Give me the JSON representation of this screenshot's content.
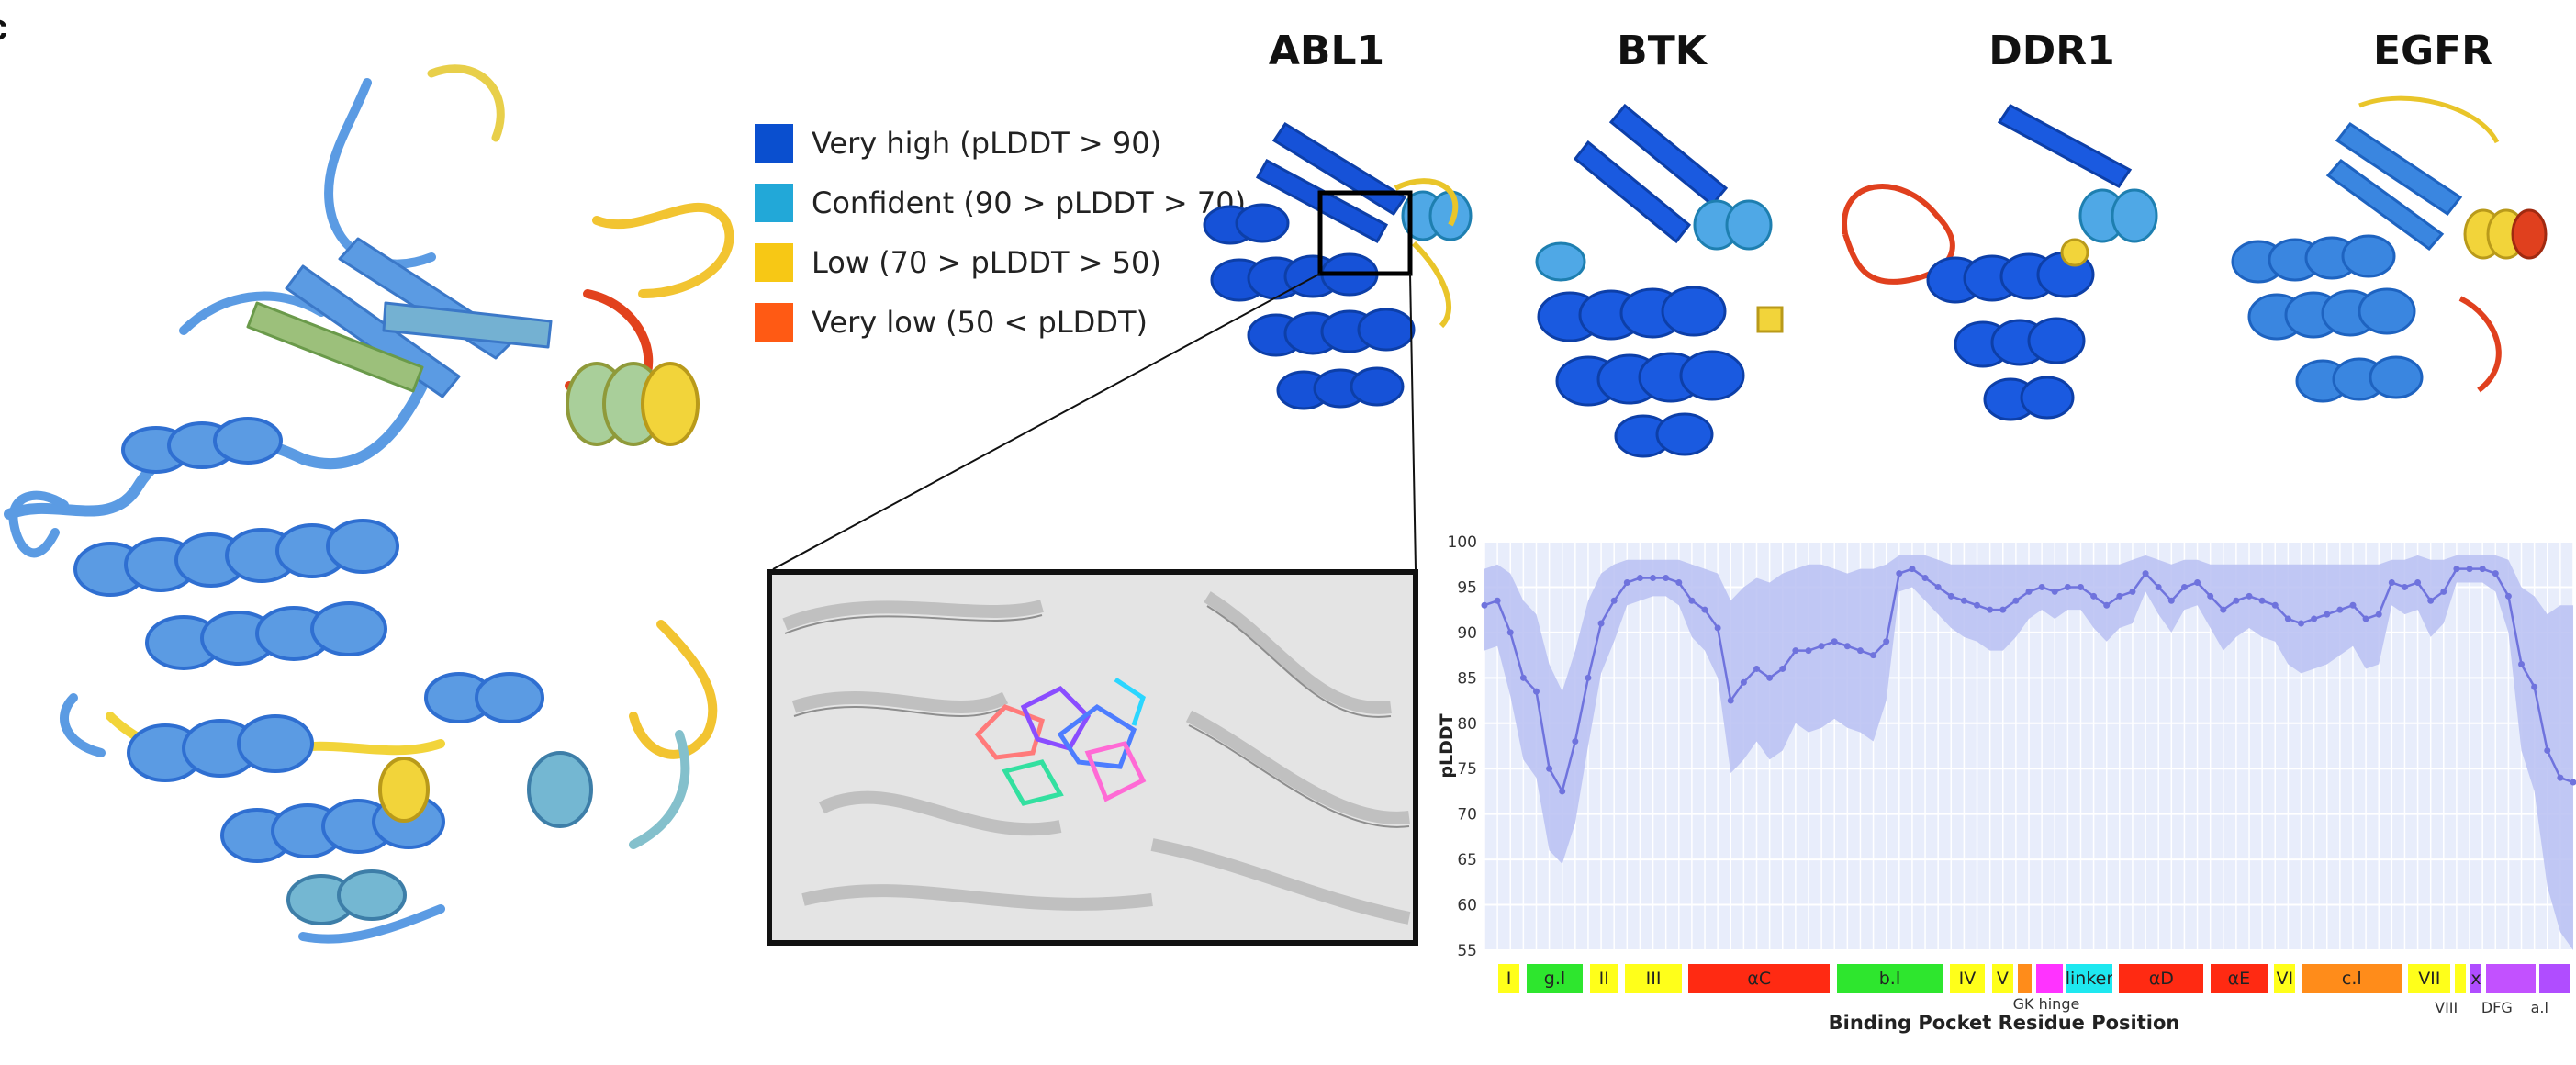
{
  "panel_letter": "c",
  "legend": [
    {
      "label": "Very high (pLDDT > 90)",
      "color": "#0a4fcf"
    },
    {
      "label": "Confident (90 > pLDDT > 70)",
      "color": "#22a8d8"
    },
    {
      "label": "Low (70 > pLDDT > 50)",
      "color": "#f7c815"
    },
    {
      "label": "Very low (50 < pLDDT)",
      "color": "#ff5a14"
    }
  ],
  "proteins": [
    "ABL1",
    "BTK",
    "DDR1",
    "EGFR"
  ],
  "colors": {
    "ribbon_mid": "#5b9be3",
    "ribbon_dark": "#2f6fd1",
    "ribbon_very_high": "#1652d8",
    "ribbon_confident": "#4fa8e6",
    "low": "#f2d43a",
    "very_low": "#e0401e",
    "line": "#6f73dd",
    "band": "#b9bff2",
    "plot_bg": "#e8edfb"
  },
  "chart_data": {
    "type": "line",
    "xlabel": "Binding Pocket Residue Position",
    "ylabel": "pLDDT",
    "ylim": [
      55,
      100
    ],
    "yticks": [
      55,
      60,
      65,
      70,
      75,
      80,
      85,
      90,
      95,
      100
    ],
    "grid": true,
    "series": [
      {
        "values": [
          93.0,
          93.5,
          90.0,
          85.0,
          83.5,
          75.0,
          72.5,
          78.0,
          85.0,
          91.0,
          93.5,
          95.5,
          96.0,
          96.0,
          96.0,
          95.5,
          93.5,
          92.5,
          90.5,
          82.5,
          84.5,
          86.0,
          85.0,
          86.0,
          88.0,
          88.0,
          88.5,
          89.0,
          88.5,
          88.0,
          87.5,
          89.0,
          96.5,
          97.0,
          96.0,
          95.0,
          94.0,
          93.5,
          93.0,
          92.5,
          92.5,
          93.5,
          94.5,
          95.0,
          94.5,
          95.0,
          95.0,
          94.0,
          93.0,
          94.0,
          94.5,
          96.5,
          95.0,
          93.5,
          95.0,
          95.5,
          94.0,
          92.5,
          93.5,
          94.0,
          93.5,
          93.0,
          91.5,
          91.0,
          91.5,
          92.0,
          92.5,
          93.0,
          91.5,
          92.0,
          95.5,
          95.0,
          95.5,
          93.5,
          94.5,
          97.0,
          97.0,
          97.0,
          96.5,
          94.0,
          86.5,
          84.0,
          77.0,
          74.0,
          73.5
        ],
        "upper": [
          97.0,
          97.5,
          96.5,
          93.5,
          92.0,
          86.5,
          83.5,
          88.0,
          93.5,
          96.5,
          97.5,
          98.0,
          98.0,
          98.0,
          98.0,
          98.0,
          97.5,
          97.0,
          96.5,
          93.5,
          95.0,
          96.0,
          95.5,
          96.5,
          97.0,
          97.5,
          97.5,
          97.0,
          96.5,
          97.0,
          97.0,
          97.5,
          98.5,
          98.5,
          98.5,
          98.0,
          97.5,
          97.5,
          97.5,
          97.5,
          97.5,
          97.5,
          97.5,
          97.5,
          97.5,
          97.5,
          97.5,
          97.5,
          97.5,
          97.5,
          98.0,
          98.5,
          98.0,
          97.5,
          98.0,
          98.0,
          97.5,
          97.5,
          97.5,
          97.5,
          97.5,
          97.5,
          97.5,
          97.5,
          97.5,
          97.5,
          97.5,
          97.5,
          97.5,
          97.5,
          98.0,
          98.0,
          98.5,
          98.0,
          98.0,
          98.5,
          98.5,
          98.5,
          98.5,
          98.0,
          95.0,
          94.0,
          92.0,
          93.0,
          93.0
        ],
        "lower": [
          88.0,
          88.5,
          83.0,
          76.0,
          74.0,
          66.0,
          64.5,
          69.0,
          77.5,
          85.5,
          89.0,
          93.0,
          93.5,
          94.0,
          94.0,
          93.0,
          89.5,
          88.0,
          85.0,
          74.5,
          76.0,
          78.0,
          76.0,
          77.0,
          80.0,
          79.0,
          79.5,
          80.5,
          79.5,
          79.0,
          78.0,
          82.5,
          94.5,
          95.0,
          93.5,
          92.0,
          90.5,
          89.5,
          89.0,
          88.0,
          88.0,
          89.5,
          91.5,
          92.5,
          91.5,
          92.5,
          92.5,
          90.5,
          89.0,
          90.5,
          91.0,
          94.5,
          92.0,
          90.0,
          92.5,
          93.0,
          90.5,
          88.0,
          89.5,
          90.5,
          89.5,
          89.0,
          86.5,
          85.5,
          86.0,
          86.5,
          87.5,
          88.5,
          86.0,
          86.5,
          93.0,
          92.0,
          92.5,
          89.5,
          91.0,
          95.5,
          95.5,
          95.5,
          94.5,
          90.0,
          77.0,
          72.5,
          62.0,
          57.0,
          55.0
        ]
      }
    ],
    "regions": [
      {
        "label": "I",
        "start": 0,
        "end": 1.5,
        "color": "#ffff1a"
      },
      {
        "label": "g.l",
        "start": 2,
        "end": 6,
        "color": "#2ee62e"
      },
      {
        "label": "II",
        "start": 6.5,
        "end": 8.5,
        "color": "#ffff1a"
      },
      {
        "label": "III",
        "start": 9,
        "end": 13,
        "color": "#ffff1a"
      },
      {
        "label": "αC",
        "start": 13.5,
        "end": 23.5,
        "color": "#ff2a12"
      },
      {
        "label": "b.l",
        "start": 24,
        "end": 31.5,
        "color": "#2ee62e"
      },
      {
        "label": "IV",
        "start": 32,
        "end": 34.5,
        "color": "#ffff1a"
      },
      {
        "label": "V",
        "start": 35,
        "end": 36.5,
        "color": "#ffff1a"
      },
      {
        "label": "",
        "start": 36.8,
        "end": 37.8,
        "color": "#ff8c1a"
      },
      {
        "label": "",
        "start": 38.1,
        "end": 40,
        "color": "#ff33ff"
      },
      {
        "label": "linker",
        "start": 40.3,
        "end": 43.5,
        "color": "#1ee8f0"
      },
      {
        "label": "αD",
        "start": 44,
        "end": 50,
        "color": "#ff2a12"
      },
      {
        "label": "αE",
        "start": 50.5,
        "end": 54.5,
        "color": "#ff2a12"
      },
      {
        "label": "VI",
        "start": 55,
        "end": 56.5,
        "color": "#ffff1a"
      },
      {
        "label": "c.l",
        "start": 57,
        "end": 64,
        "color": "#ff8c1a"
      },
      {
        "label": "VII",
        "start": 64.5,
        "end": 67.5,
        "color": "#ffff1a"
      },
      {
        "label": "",
        "start": 67.8,
        "end": 68.6,
        "color": "#ffff1a"
      },
      {
        "label": "x",
        "start": 68.9,
        "end": 69.7,
        "color": "#b04dff"
      },
      {
        "label": "",
        "start": 70,
        "end": 73.5,
        "color": "#c251ff"
      },
      {
        "label": "",
        "start": 73.8,
        "end": 76,
        "color": "#b04dff"
      }
    ],
    "region_labels_below": [
      {
        "label": "GK hinge",
        "at": 38.3
      },
      {
        "label": "VIII",
        "at": 68.2
      },
      {
        "label": "DFG",
        "at": 71.5
      },
      {
        "label": "a.l",
        "at": 75
      }
    ]
  }
}
